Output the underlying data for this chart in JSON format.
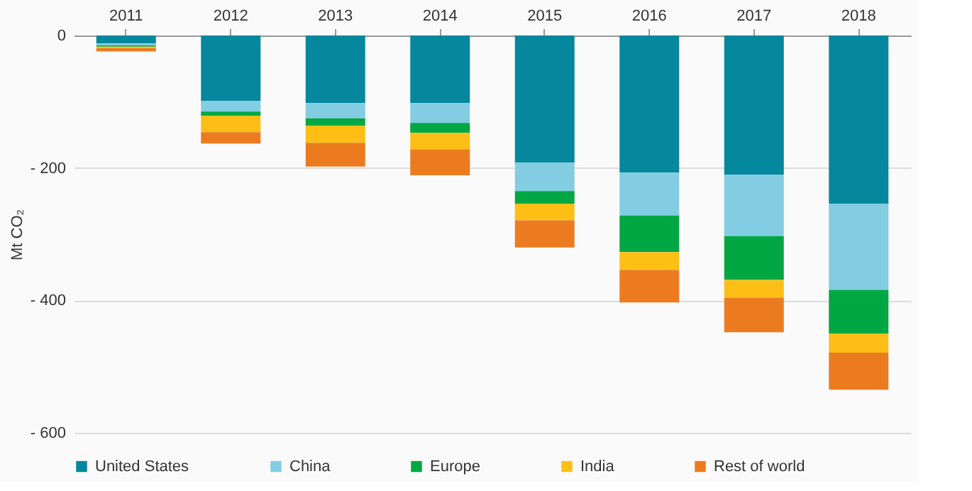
{
  "chart_data": {
    "type": "bar",
    "stacked": true,
    "ylabel": "Mt CO₂",
    "categories": [
      "2011",
      "2012",
      "2013",
      "2014",
      "2015",
      "2016",
      "2017",
      "2018"
    ],
    "series": [
      {
        "name": "United States",
        "color": "#05879d",
        "values": [
          -12,
          -99,
          -102,
          -102,
          -192,
          -207,
          -210,
          -254
        ]
      },
      {
        "name": "China",
        "color": "#82cde2",
        "values": [
          -3,
          -16,
          -23,
          -30,
          -43,
          -65,
          -93,
          -130
        ]
      },
      {
        "name": "Europe",
        "color": "#00a742",
        "values": [
          -2,
          -6,
          -11,
          -15,
          -19,
          -55,
          -66,
          -66
        ]
      },
      {
        "name": "India",
        "color": "#fdbf16",
        "values": [
          -2,
          -25,
          -26,
          -25,
          -25,
          -27,
          -27,
          -29
        ]
      },
      {
        "name": "Rest of world",
        "color": "#ec7b20",
        "values": [
          -5,
          -17,
          -36,
          -39,
          -41,
          -49,
          -52,
          -56
        ]
      }
    ],
    "ylim": [
      -600,
      0
    ],
    "yticks": [
      0,
      {
        "value": -200,
        "label": "- 200"
      },
      {
        "value": -400,
        "label": "- 400"
      },
      {
        "value": -600,
        "label": "- 600"
      }
    ],
    "grid": "y",
    "legend": "bottom"
  }
}
